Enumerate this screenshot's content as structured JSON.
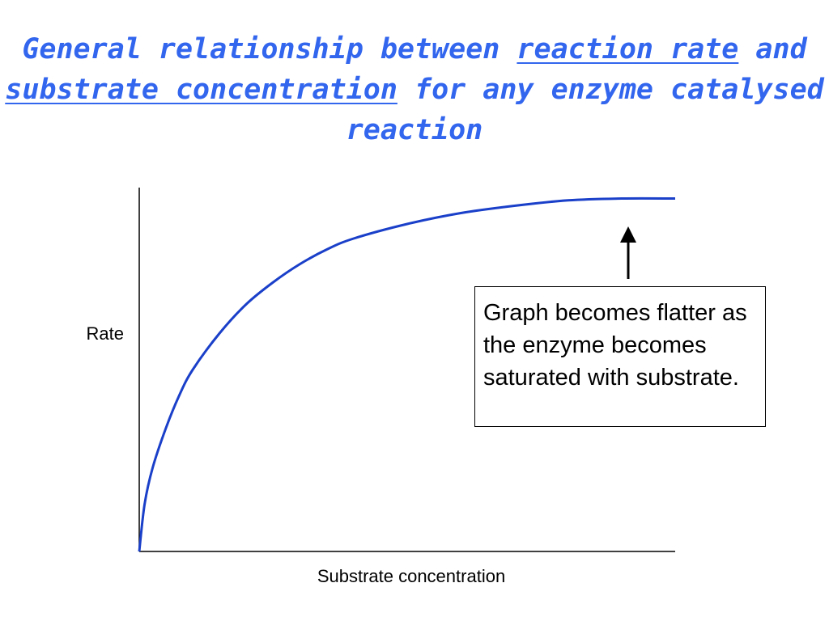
{
  "title": {
    "part1": "General relationship between ",
    "link1": "reaction rate",
    "part2": " and",
    "link2": "substrate concentration",
    "part3": " for any enzyme catalysed reaction"
  },
  "chart_data": {
    "type": "line",
    "title": "General relationship between reaction rate and substrate concentration for any enzyme catalysed reaction",
    "xlabel": "Substrate concentration",
    "ylabel": "Rate",
    "xlim": [
      0,
      10
    ],
    "ylim": [
      0,
      1
    ],
    "grid": false,
    "legend": "none",
    "series": [
      {
        "x": [
          0,
          0.1,
          0.25,
          0.5,
          0.75,
          1,
          1.5,
          2,
          2.5,
          3,
          3.5,
          4,
          5,
          6,
          7,
          8,
          9,
          10
        ],
        "y": [
          0,
          0.13,
          0.23,
          0.34,
          0.43,
          0.5,
          0.6,
          0.68,
          0.74,
          0.79,
          0.83,
          0.86,
          0.9,
          0.93,
          0.95,
          0.965,
          0.97,
          0.97
        ],
        "color": "#1a3fc9"
      }
    ],
    "annotation": {
      "text": "Graph becomes flatter as the enzyme becomes saturated with substrate.",
      "arrow": "points up to the plateau"
    }
  }
}
